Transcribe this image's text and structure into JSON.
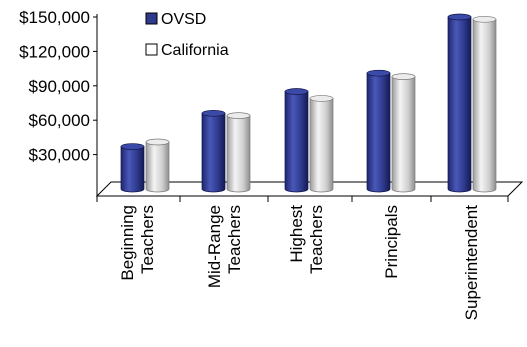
{
  "chart_data": {
    "type": "bar",
    "categories": [
      [
        "Beginning",
        "Teachers"
      ],
      [
        "Mid-Range",
        "Teachers"
      ],
      [
        "Highest",
        "Teachers"
      ],
      [
        "Principals"
      ],
      [
        "Superintendent"
      ]
    ],
    "series": [
      {
        "name": "OVSD",
        "color": "#2e3a8c",
        "values": [
          37000,
          66000,
          85000,
          101000,
          150000
        ]
      },
      {
        "name": "California",
        "color": "#d6d6d6",
        "values": [
          41000,
          64000,
          79000,
          98000,
          148000
        ]
      }
    ],
    "y_ticks": [
      "$150,000",
      "$120,000",
      "$90,000",
      "$60,000",
      "$30,000"
    ],
    "y_tick_values": [
      150000,
      120000,
      90000,
      60000,
      30000
    ],
    "ylim": [
      0,
      150000
    ],
    "title": "",
    "xlabel": "",
    "ylabel": "",
    "legend_position": "top-left",
    "grid": false
  }
}
